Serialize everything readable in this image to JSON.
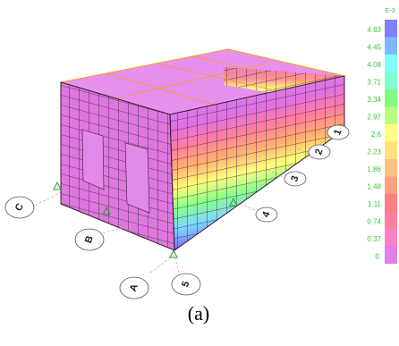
{
  "legend": {
    "title": "E-3",
    "labels": [
      "4.83",
      "4.45",
      "4.08",
      "3.71",
      "3.34",
      "2.97",
      "2.6",
      "2.23",
      "1.86",
      "1.48",
      "1.11",
      "0.74",
      "0.37",
      "0."
    ]
  },
  "grid_labels": [
    "C",
    "B",
    "A",
    "5",
    "4",
    "3",
    "2",
    "1"
  ],
  "caption": "(a)"
}
